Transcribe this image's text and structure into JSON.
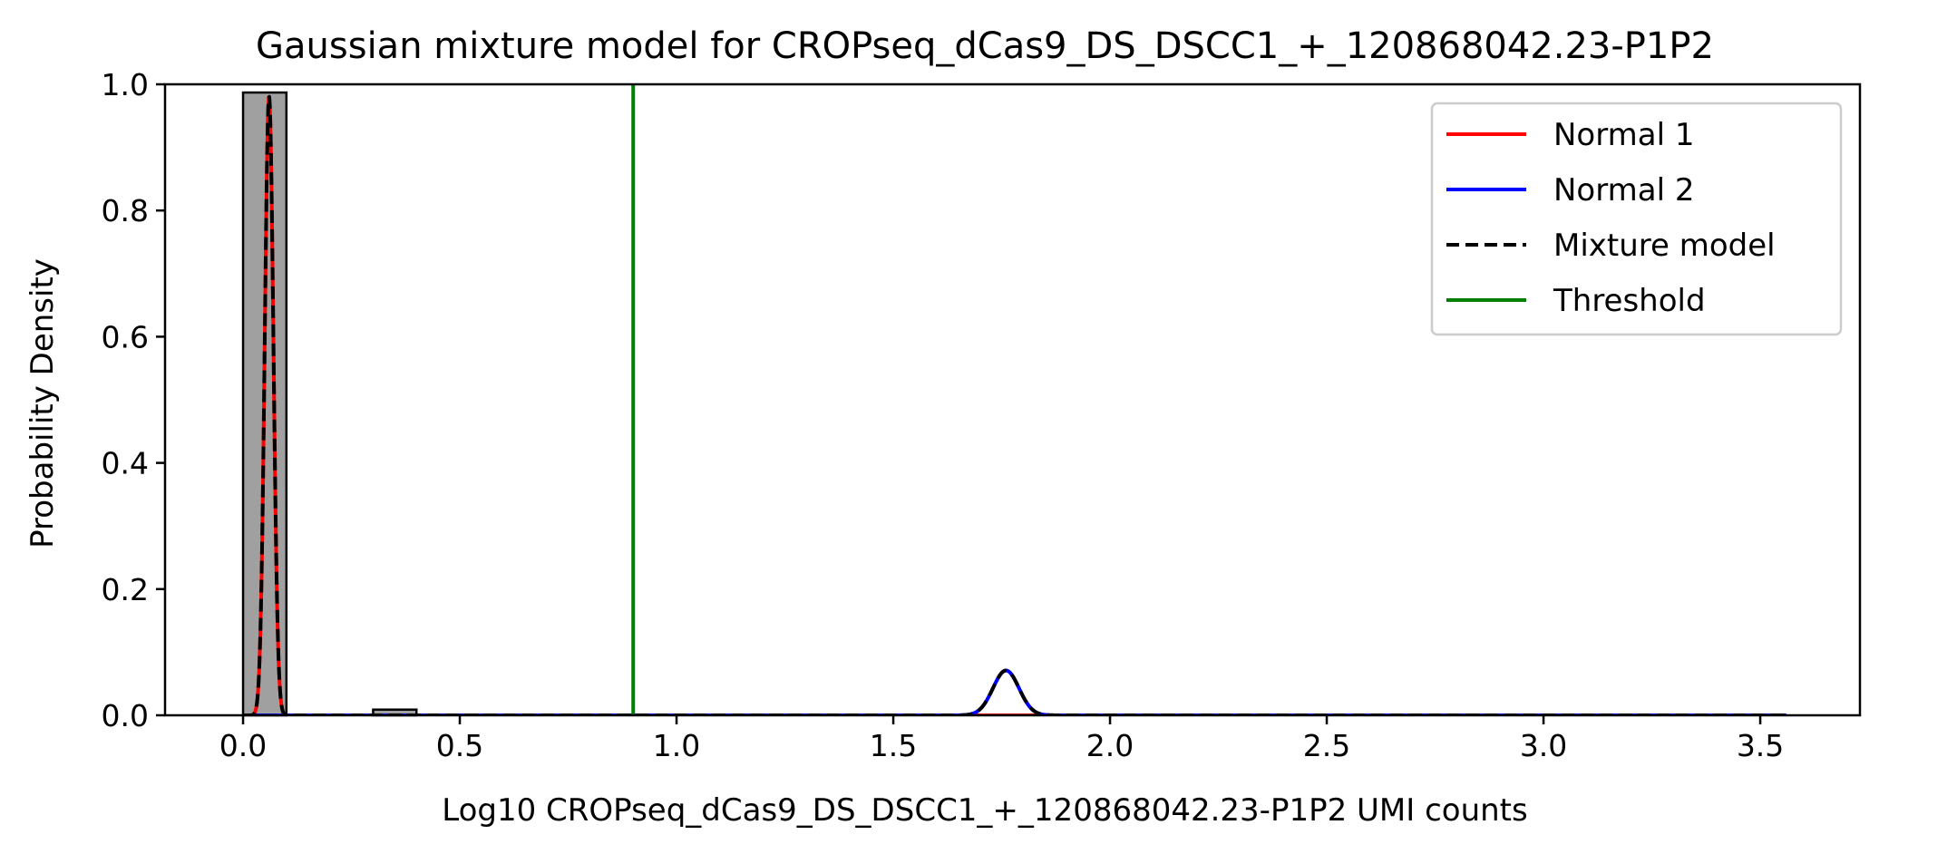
{
  "chart_data": {
    "type": "histogram_with_density",
    "title": "Gaussian mixture model for CROPseq_dCas9_DS_DSCC1_+_120868042.23-P1P2",
    "xlabel": "Log10 CROPseq_dCas9_DS_DSCC1_+_120868042.23-P1P2 UMI counts",
    "ylabel": "Probability Density",
    "xlim": [
      -0.18,
      3.73
    ],
    "ylim": [
      0.0,
      1.0
    ],
    "xticks": [
      0.0,
      0.5,
      1.0,
      1.5,
      2.0,
      2.5,
      3.0,
      3.5
    ],
    "xtick_labels": [
      "0.0",
      "0.5",
      "1.0",
      "1.5",
      "2.0",
      "2.5",
      "3.0",
      "3.5"
    ],
    "yticks": [
      0.0,
      0.2,
      0.4,
      0.6,
      0.8,
      1.0
    ],
    "ytick_labels": [
      "0.0",
      "0.2",
      "0.4",
      "0.6",
      "0.8",
      "1.0"
    ],
    "grid": false,
    "legend_position": "top-right",
    "histogram": {
      "color": "#a0a0a0",
      "edgecolor": "#000000",
      "bins": [
        {
          "x0": 0.0,
          "x1": 0.1,
          "density": 0.987
        },
        {
          "x0": 0.3,
          "x1": 0.4,
          "density": 0.009
        }
      ]
    },
    "series": [
      {
        "name": "Normal 1",
        "color": "#ff0000",
        "style": "solid",
        "components": [
          {
            "weight": 0.0246,
            "mean": 0.06,
            "sd": 0.01
          }
        ]
      },
      {
        "name": "Normal 2",
        "color": "#0000ff",
        "style": "solid",
        "components": [
          {
            "weight": 0.00534,
            "mean": 1.76,
            "sd": 0.03
          }
        ]
      },
      {
        "name": "Mixture model",
        "color": "#000000",
        "style": "dashed",
        "components": [
          {
            "weight": 0.0246,
            "mean": 0.06,
            "sd": 0.01
          },
          {
            "weight": 0.00534,
            "mean": 1.76,
            "sd": 0.03
          }
        ]
      },
      {
        "name": "Threshold",
        "color": "#008000",
        "style": "solid",
        "vertical_x": 0.9
      }
    ],
    "curve_x_range": [
      0.0,
      3.56
    ]
  }
}
